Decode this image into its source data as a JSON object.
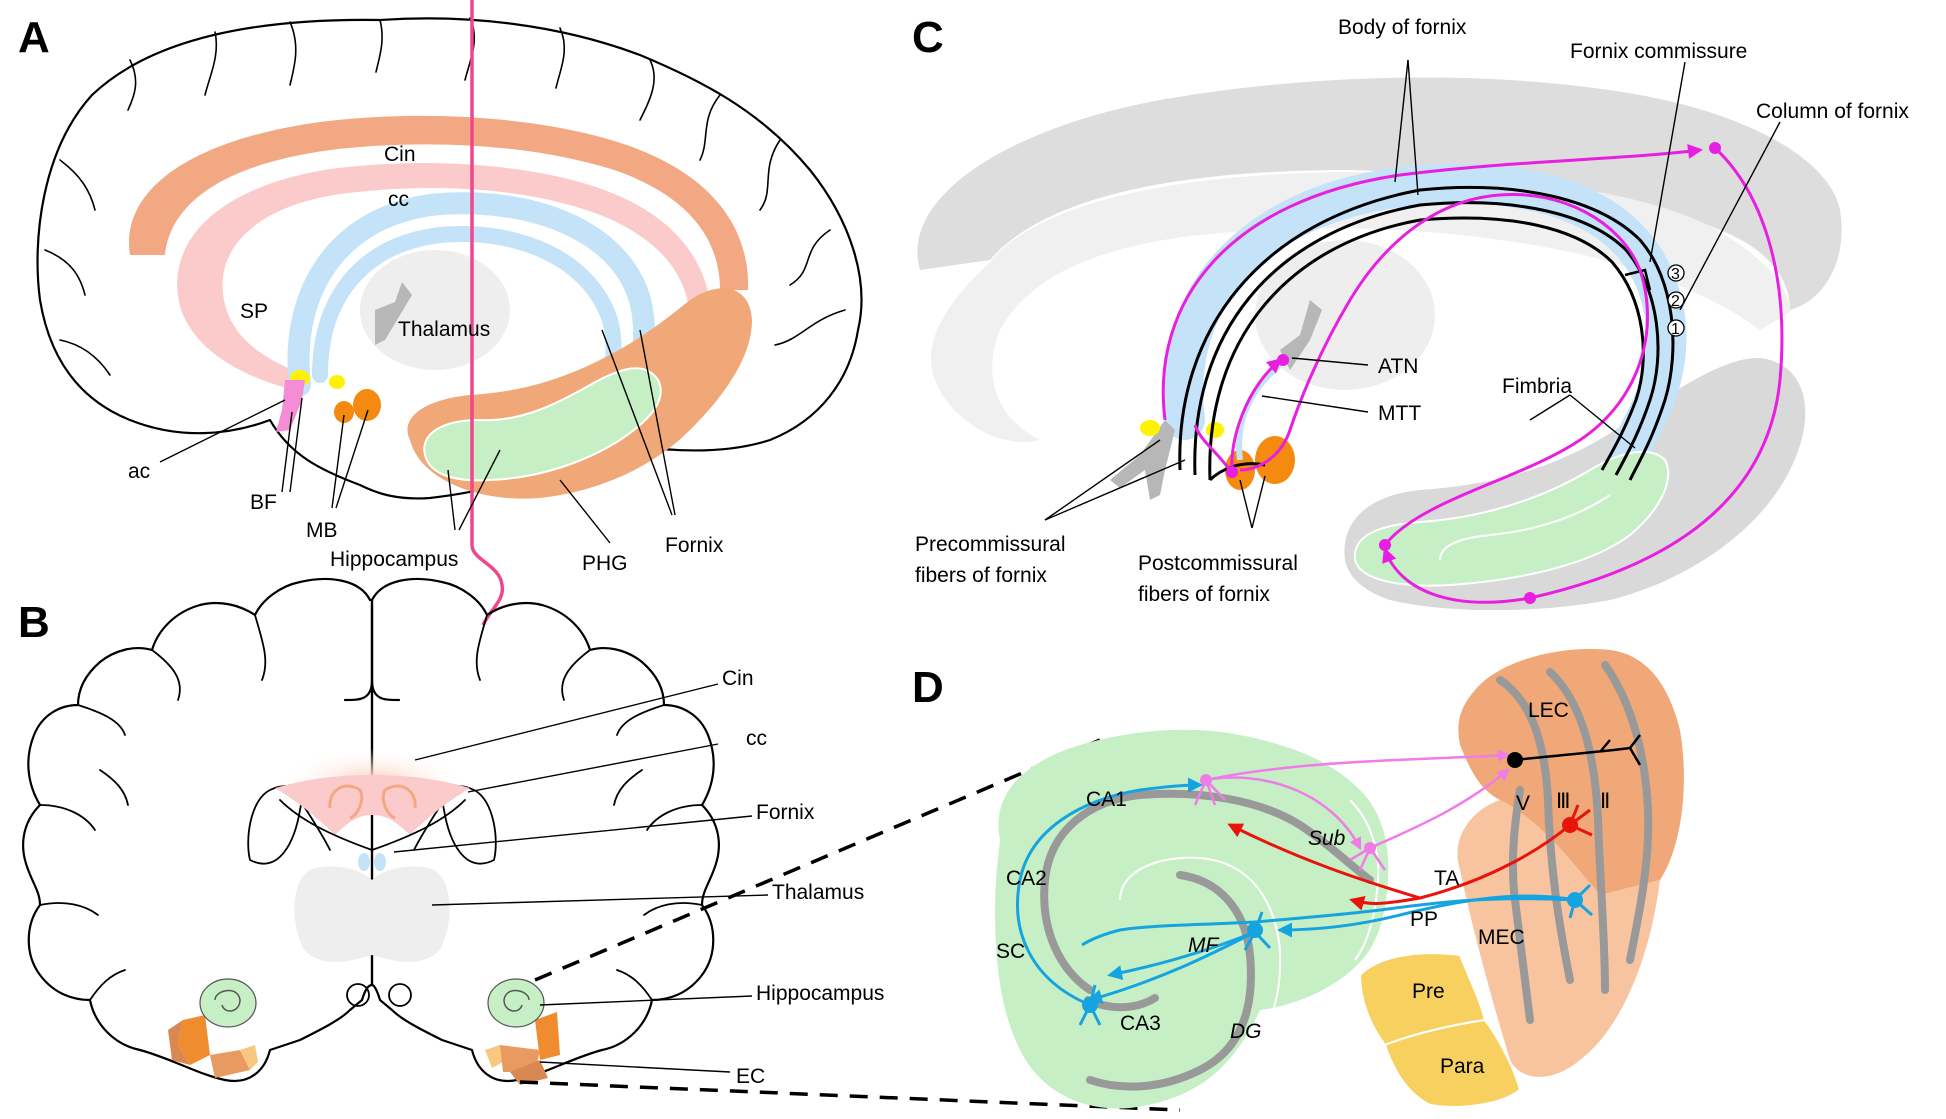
{
  "panels": {
    "A": {
      "letter": "A",
      "labels": {
        "cin": "Cin",
        "cc": "cc",
        "sp": "SP",
        "thalamus": "Thalamus",
        "ac": "ac",
        "bf": "BF",
        "mb": "MB",
        "hippocampus": "Hippocampus",
        "phg": "PHG",
        "fornix": "Fornix"
      }
    },
    "B": {
      "letter": "B",
      "labels": {
        "cin": "Cin",
        "cc": "cc",
        "fornix": "Fornix",
        "thalamus": "Thalamus",
        "hippocampus": "Hippocampus",
        "ec": "EC"
      }
    },
    "C": {
      "letter": "C",
      "labels": {
        "body_of_fornix": "Body of fornix",
        "fornix_commissure": "Fornix commissure",
        "column_of_fornix": "Column of fornix",
        "atn": "ATN",
        "mtt": "MTT",
        "fimbria": "Fimbria",
        "precommissural_1": "Precommissural",
        "precommissural_2": "fibers of fornix",
        "postcommissural_1": "Postcommissural",
        "postcommissural_2": "fibers of fornix",
        "num_1": "1",
        "num_2": "2",
        "num_3": "3"
      }
    },
    "D": {
      "letter": "D",
      "labels": {
        "lec": "LEC",
        "v": "V",
        "iii": "Ⅲ",
        "ii": "Ⅱ",
        "ca1": "CA1",
        "sub": "Sub",
        "ta": "TA",
        "ca2": "CA2",
        "pp": "PP",
        "mec": "MEC",
        "mf": "MF",
        "sc": "SC",
        "ca3": "CA3",
        "dg": "DG",
        "pre": "Pre",
        "para": "Para"
      }
    }
  },
  "colors": {
    "cingulum": "#f2a882",
    "corpus_callosum": "#fbcaca",
    "fornix": "#c4e3f8",
    "hippocampus": "#c6efc6",
    "phg": "#f0a878",
    "mammillary_body": "#f58a10",
    "basal_forebrain": "#f48cd6",
    "septum_yellow": "#fff200",
    "thalamus": "#eeeeee",
    "grey_matter": "#d9d9d9",
    "section_line": "#f0468e",
    "magenta_pathway": "#e81ee0",
    "pink_pathway": "#f07ce8",
    "red_pathway": "#e8140c",
    "blue_pathway": "#16a4e0",
    "lec": "#f0a878",
    "mec": "#f8c4a0",
    "pre_para": "#f8d060"
  }
}
